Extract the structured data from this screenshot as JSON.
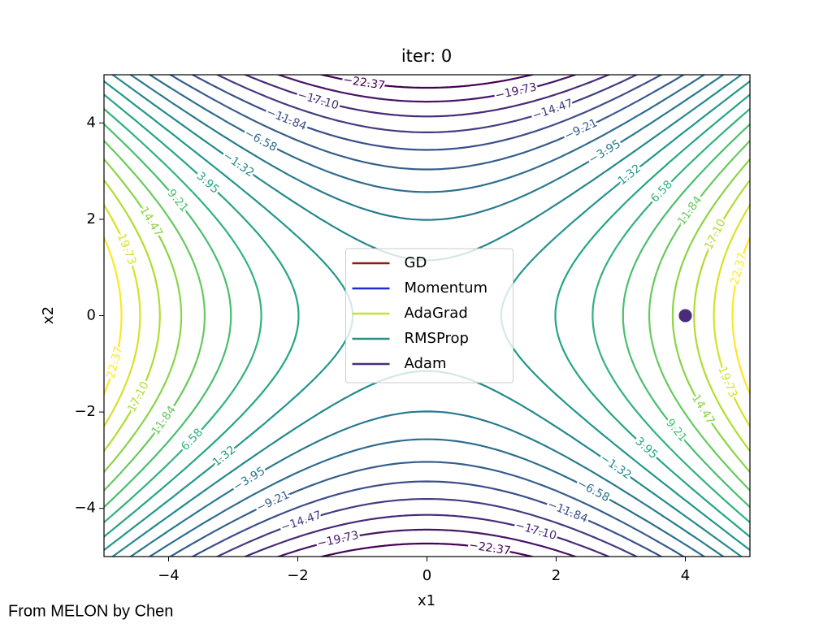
{
  "chart_data": {
    "type": "contour",
    "title": "iter: 0",
    "xlabel": "x1",
    "ylabel": "x2",
    "xlim": [
      -5,
      5
    ],
    "ylim": [
      -5,
      5
    ],
    "xticks": [
      {
        "value": -4,
        "label": "−4"
      },
      {
        "value": -2,
        "label": "−2"
      },
      0,
      2,
      4
    ],
    "yticks": [
      {
        "value": -4,
        "label": "−4"
      },
      {
        "value": -2,
        "label": "−2"
      },
      0,
      2,
      4
    ],
    "colormap": "viridis",
    "levels": [
      -22.37,
      -19.73,
      -17.1,
      -14.47,
      -11.84,
      -9.21,
      -6.58,
      -3.95,
      -1.32,
      1.32,
      3.95,
      6.58,
      9.21,
      11.84,
      14.47,
      17.1,
      19.73,
      22.37
    ],
    "level_labels": [
      "−22.37",
      "−19.73",
      "−17.10",
      "−14.47",
      "−11.84",
      "−9.21",
      "−6.58",
      "−3.95",
      "−1.32",
      "1.32",
      "3.95",
      "6.58",
      "9.21",
      "11.84",
      "14.47",
      "17.10",
      "19.73",
      "22.37"
    ],
    "series": [
      {
        "name": "GD",
        "color": "#8c1c0c",
        "x": [
          4
        ],
        "y": [
          0
        ]
      },
      {
        "name": "Momentum",
        "color": "#1f2dd0",
        "x": [
          4
        ],
        "y": [
          0
        ]
      },
      {
        "name": "AdaGrad",
        "color": "#c9e03a",
        "x": [
          4
        ],
        "y": [
          0
        ]
      },
      {
        "name": "RMSProp",
        "color": "#2a8f88",
        "x": [
          4
        ],
        "y": [
          0
        ]
      },
      {
        "name": "Adam",
        "color": "#4a2c7a",
        "x": [
          4
        ],
        "y": [
          0
        ]
      }
    ],
    "legend": "center",
    "footer": "From MELON by Chen"
  }
}
